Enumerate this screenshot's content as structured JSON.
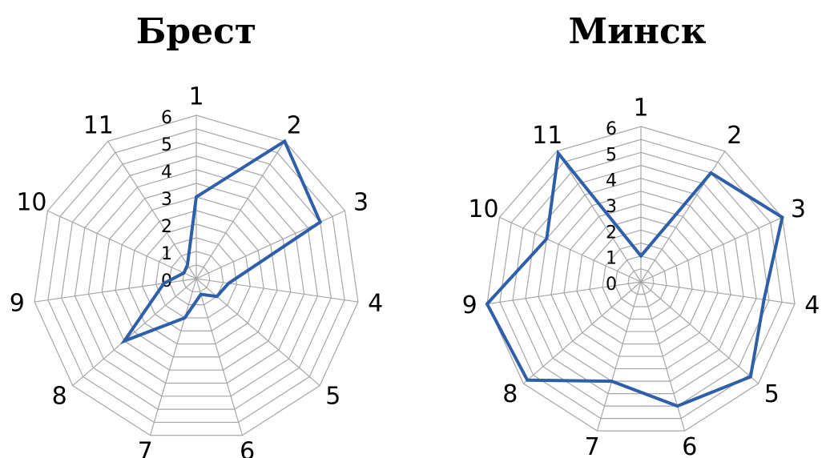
{
  "chart_data": [
    {
      "type": "radar",
      "title": "Брест",
      "categories": [
        "1",
        "2",
        "3",
        "4",
        "5",
        "6",
        "7",
        "8",
        "9",
        "10",
        "11"
      ],
      "ticks": [
        "0",
        "1",
        "2",
        "3",
        "4",
        "5",
        "6"
      ],
      "rlim": [
        0,
        6
      ],
      "grid": true,
      "series": [
        {
          "values": [
            3.0,
            6.0,
            5.0,
            1.2,
            1.0,
            0.6,
            1.5,
            3.5,
            1.2,
            0.5,
            0.6
          ]
        }
      ],
      "colors": {
        "line": "#2e5fa8",
        "grid": "#a6a6a6"
      }
    },
    {
      "type": "radar",
      "title": "Минск",
      "categories": [
        "1",
        "2",
        "3",
        "4",
        "5",
        "6",
        "7",
        "8",
        "9",
        "10",
        "11"
      ],
      "ticks": [
        "0",
        "1",
        "2",
        "3",
        "4",
        "5",
        "6"
      ],
      "rlim": [
        0,
        6
      ],
      "grid": true,
      "series": [
        {
          "values": [
            1.0,
            5.0,
            6.0,
            4.8,
            5.6,
            5.0,
            4.0,
            5.8,
            6.0,
            4.0,
            5.9
          ]
        }
      ],
      "colors": {
        "line": "#2e5fa8",
        "grid": "#a6a6a6"
      }
    }
  ]
}
